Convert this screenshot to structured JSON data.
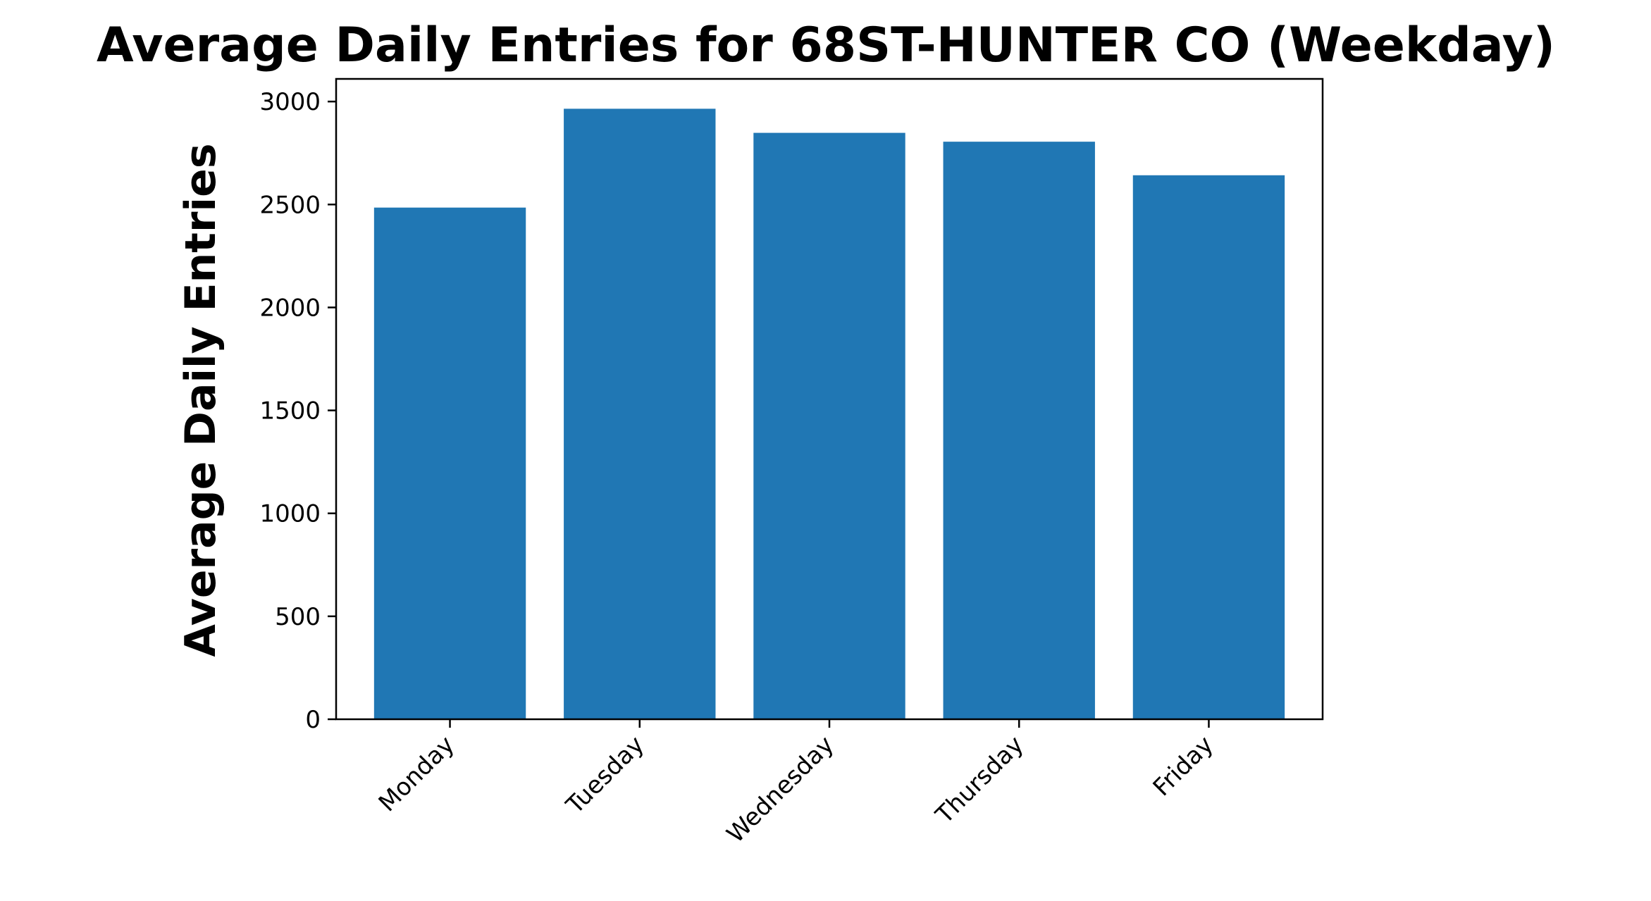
{
  "chart_data": {
    "type": "bar",
    "title": "Average Daily Entries for 68ST-HUNTER CO (Weekday)",
    "xlabel": "",
    "ylabel": "Average Daily Entries",
    "categories": [
      "Monday",
      "Tuesday",
      "Wednesday",
      "Thursday",
      "Friday"
    ],
    "values": [
      2485,
      2965,
      2848,
      2805,
      2642
    ],
    "ylim": [
      0,
      3110
    ],
    "yticks": [
      0,
      500,
      1000,
      1500,
      2000,
      2500,
      3000
    ],
    "grid": false,
    "legend": "none",
    "bar_color": "#2077b4",
    "axis_color": "#000000"
  }
}
